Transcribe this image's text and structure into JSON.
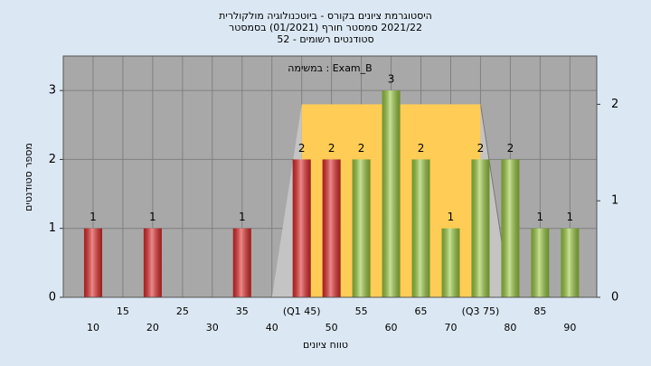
{
  "chart_data": {
    "type": "bar",
    "title": "היסטוגרמת ציונים בקורס - ביוטכנולוגיה מולקולרית",
    "subtitle": "2021/22 סמסטר חורף (01/2021) בסמסטר",
    "subtitle2": "סטודנטים רשומים - 52",
    "annotation": "במשימה : Exam_B",
    "y_label": "מספר סטודנטים",
    "x_label": "טווח ציונים",
    "x": [
      10,
      20,
      35,
      45,
      50,
      55,
      60,
      65,
      70,
      75,
      80,
      85,
      90
    ],
    "values": [
      1,
      1,
      1,
      2,
      2,
      2,
      3,
      2,
      1,
      2,
      2,
      1,
      1
    ],
    "colors": [
      "#e02828",
      "#e02828",
      "#e02828",
      "#e02828",
      "#e02828",
      "#98c83c",
      "#98c83c",
      "#98c83c",
      "#98c83c",
      "#98c83c",
      "#98c83c",
      "#98c83c",
      "#98c83c"
    ],
    "xlim": [
      5,
      94.5
    ],
    "xticks": [
      10,
      15,
      20,
      25,
      30,
      35,
      40,
      {
        "value": 45,
        "label": "(Q1 45)"
      },
      50,
      55,
      60,
      65,
      70,
      {
        "value": 75,
        "label": "(Q3 75)"
      },
      80,
      85,
      90
    ],
    "ylim": [
      0,
      3.5
    ],
    "yticks": [
      0,
      1,
      2,
      3
    ],
    "y2lim": [
      0,
      2.5
    ],
    "y2ticks": [
      0,
      1,
      2
    ],
    "box": {
      "whisker_low": 40,
      "q1": 45,
      "q3": 75,
      "whisker_high": 80,
      "height": 2,
      "color": "#ffcc55",
      "whisker_color": "#c4c4c4",
      "axis": "y2"
    },
    "grid": true
  }
}
